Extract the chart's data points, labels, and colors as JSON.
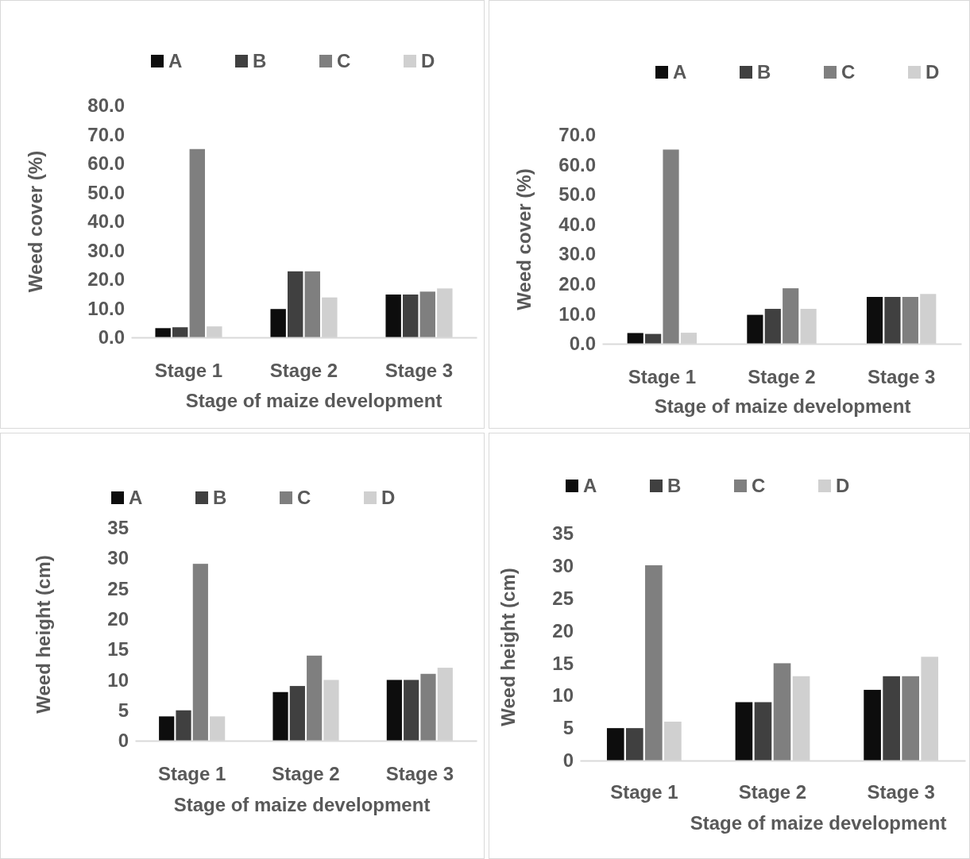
{
  "chart_data": [
    {
      "type": "bar",
      "categories": [
        "Stage 1",
        "Stage 2",
        "Stage 3"
      ],
      "xlabel": "Stage of maize development",
      "ylabel": "Weed cover (%)",
      "legend": "top",
      "series": [
        {
          "name": "A",
          "color": "#0d0d0d",
          "values": [
            3.2,
            9.8,
            14.8
          ]
        },
        {
          "name": "B",
          "color": "#404040",
          "values": [
            3.5,
            22.8,
            14.8
          ]
        },
        {
          "name": "C",
          "color": "#7f7f7f",
          "values": [
            65,
            22.8,
            15.8
          ]
        },
        {
          "name": "D",
          "color": "#d0d0d0",
          "values": [
            3.8,
            13.8,
            16.9
          ]
        }
      ],
      "ylim": [
        0,
        80
      ],
      "yticks": [
        {
          "value": 0,
          "label": "0.0"
        },
        {
          "value": 10,
          "label": "10.0"
        },
        {
          "value": 20,
          "label": "20.0"
        },
        {
          "value": 30,
          "label": "30.0"
        },
        {
          "value": 40,
          "label": "40.0"
        },
        {
          "value": 50,
          "label": "50.0"
        },
        {
          "value": 60,
          "label": "60.0"
        },
        {
          "value": 70,
          "label": "70.0"
        },
        {
          "value": 80,
          "label": "80.0"
        }
      ],
      "grid": false
    },
    {
      "type": "bar",
      "categories": [
        "Stage 1",
        "Stage 2",
        "Stage 3"
      ],
      "xlabel": "Stage of maize development",
      "ylabel": "Weed cover (%)",
      "legend": "top",
      "series": [
        {
          "name": "A",
          "color": "#0d0d0d",
          "values": [
            3.6,
            9.7,
            15.7
          ]
        },
        {
          "name": "B",
          "color": "#404040",
          "values": [
            3.3,
            11.7,
            15.7
          ]
        },
        {
          "name": "C",
          "color": "#7f7f7f",
          "values": [
            65.1,
            18.6,
            15.7
          ]
        },
        {
          "name": "D",
          "color": "#d0d0d0",
          "values": [
            3.7,
            11.7,
            16.7
          ]
        }
      ],
      "ylim": [
        0,
        70
      ],
      "yticks": [
        {
          "value": 0,
          "label": "0.0"
        },
        {
          "value": 10,
          "label": "10.0"
        },
        {
          "value": 20,
          "label": "20.0"
        },
        {
          "value": 30,
          "label": "30.0"
        },
        {
          "value": 40,
          "label": "40.0"
        },
        {
          "value": 50,
          "label": "50.0"
        },
        {
          "value": 60,
          "label": "60.0"
        },
        {
          "value": 70,
          "label": "70.0"
        }
      ],
      "grid": false
    },
    {
      "type": "bar",
      "categories": [
        "Stage 1",
        "Stage 2",
        "Stage 3"
      ],
      "xlabel": "Stage of maize development",
      "ylabel": "Weed height (cm)",
      "legend": "top",
      "series": [
        {
          "name": "A",
          "color": "#0d0d0d",
          "values": [
            4,
            8,
            10
          ]
        },
        {
          "name": "B",
          "color": "#404040",
          "values": [
            5,
            9,
            10
          ]
        },
        {
          "name": "C",
          "color": "#7f7f7f",
          "values": [
            29.1,
            14,
            11
          ]
        },
        {
          "name": "D",
          "color": "#d0d0d0",
          "values": [
            4,
            10,
            12
          ]
        }
      ],
      "ylim": [
        0,
        35
      ],
      "yticks": [
        0,
        5,
        10,
        15,
        20,
        25,
        30,
        35
      ],
      "grid": false
    },
    {
      "type": "bar",
      "categories": [
        "Stage 1",
        "Stage 2",
        "Stage 3"
      ],
      "xlabel": "Stage of maize development",
      "ylabel": "Weed height (cm)",
      "legend": "top",
      "series": [
        {
          "name": "A",
          "color": "#0d0d0d",
          "values": [
            5,
            9,
            10.9
          ]
        },
        {
          "name": "B",
          "color": "#404040",
          "values": [
            5,
            9,
            13
          ]
        },
        {
          "name": "C",
          "color": "#7f7f7f",
          "values": [
            30.1,
            15,
            13
          ]
        },
        {
          "name": "D",
          "color": "#d0d0d0",
          "values": [
            6,
            13,
            16
          ]
        }
      ],
      "ylim": [
        0,
        35
      ],
      "yticks": [
        0,
        5,
        10,
        15,
        20,
        25,
        30,
        35
      ],
      "grid": false
    }
  ]
}
